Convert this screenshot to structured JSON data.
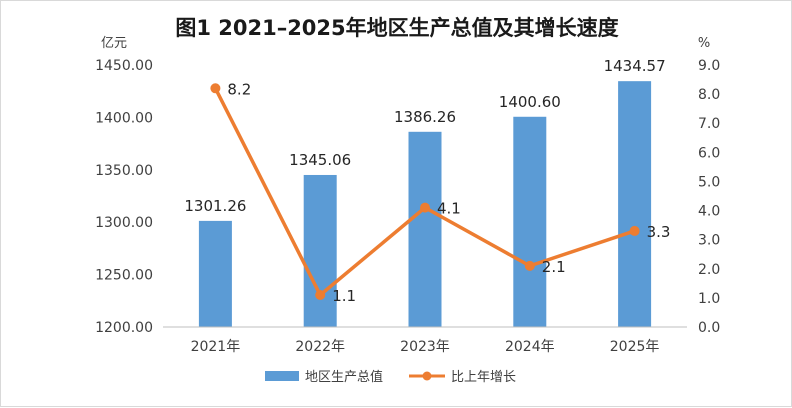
{
  "chart_data": {
    "type": "bar+line",
    "title": "图1 2021–2025年地区生产总值及其增长速度",
    "categories": [
      "2021年",
      "2022年",
      "2023年",
      "2024年",
      "2025年"
    ],
    "left_axis": {
      "unit": "亿元",
      "min": 1200,
      "max": 1450,
      "step": 50,
      "ticks": [
        "1200.00",
        "1250.00",
        "1300.00",
        "1350.00",
        "1400.00",
        "1450.00"
      ]
    },
    "right_axis": {
      "unit": "%",
      "min": 0,
      "max": 9,
      "step": 1,
      "ticks": [
        "0.0",
        "1.0",
        "2.0",
        "3.0",
        "4.0",
        "5.0",
        "6.0",
        "7.0",
        "8.0",
        "9.0"
      ]
    },
    "series": [
      {
        "name": "地区生产总值",
        "type": "bar",
        "axis": "left",
        "color": "#5b9bd5",
        "values": [
          1301.26,
          1345.06,
          1386.26,
          1400.6,
          1434.57
        ],
        "labels": [
          "1301.26",
          "1345.06",
          "1386.26",
          "1400.60",
          "1434.57"
        ]
      },
      {
        "name": "比上年增长",
        "type": "line",
        "axis": "right",
        "color": "#ed7d31",
        "values": [
          8.2,
          1.1,
          4.1,
          2.1,
          3.3
        ],
        "labels": [
          "8.2",
          "1.1",
          "4.1",
          "2.1",
          "3.3"
        ]
      }
    ],
    "grid": false,
    "legend": "bottom-center"
  }
}
